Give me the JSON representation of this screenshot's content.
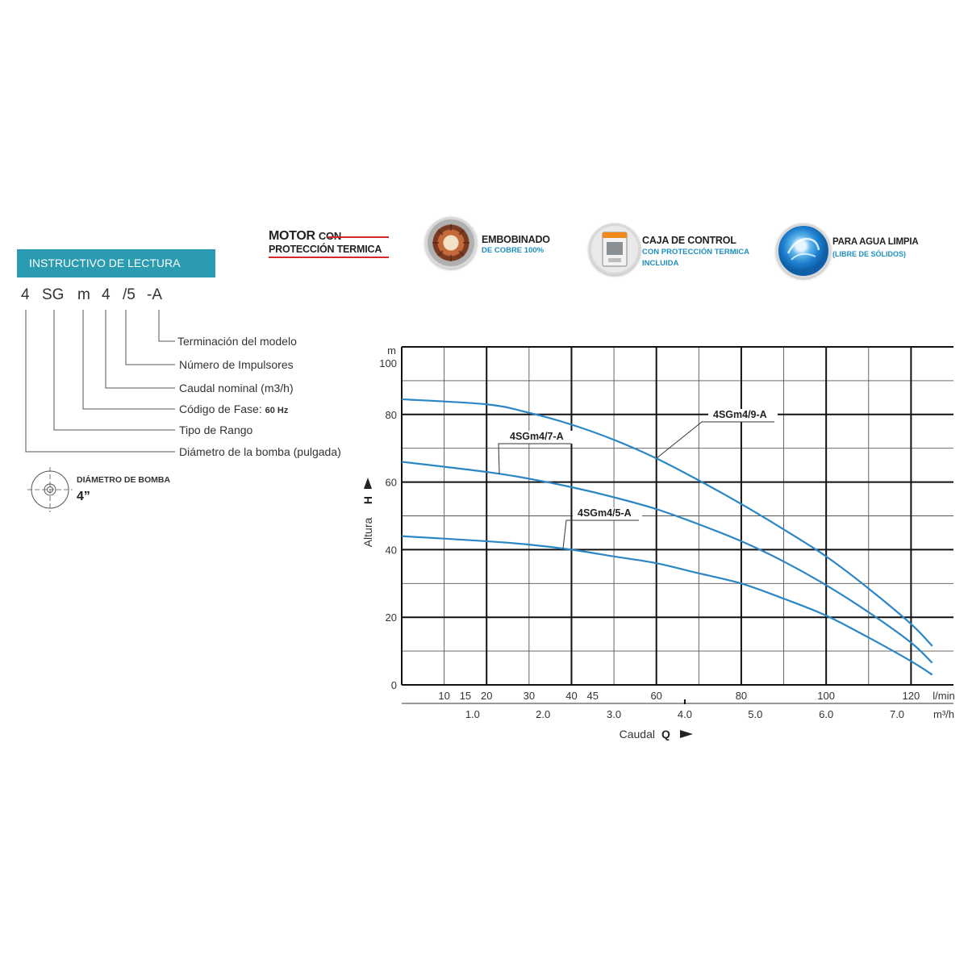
{
  "features": {
    "motor_line1_a": "MOTOR",
    "motor_line1_b": "CON",
    "motor_line2": "PROTECCIÓN TERMICA",
    "winding_title": "EMBOBINADO",
    "winding_sub": "DE COBRE 100%",
    "control_title": "CAJA DE CONTROL",
    "control_sub1": "CON PROTECCIÓN TERMICA",
    "control_sub2": "INCLUIDA",
    "water_title": "PARA AGUA LIMPIA",
    "water_sub": "(LIBRE DE SÓLIDOS)",
    "accent_color": "#1e8fbf",
    "red_color": "#d62828"
  },
  "instructions": {
    "header": "INSTRUCTIVO DE LECTURA",
    "header_color": "#2a9bb0",
    "code_parts": [
      "4",
      "SG",
      "m",
      "4",
      "/5",
      "-A"
    ],
    "descriptions": {
      "terminacion": "Terminación del modelo",
      "impulsores": "Número de Impulsores",
      "caudal": "Caudal nominal (m3/h)",
      "fase": "Código de Fase:",
      "fase_hz": "60 Hz",
      "rango": "Tipo de Rango",
      "diametro": "Diámetro de la bomba (pulgada)"
    },
    "diameter_title": "DIÁMETRO DE BOMBA",
    "diameter_value": "4”"
  },
  "chart_data": {
    "type": "line",
    "title": "",
    "ylabel": "Altura",
    "ylabel_symbol": "H",
    "y_unit": "m",
    "ylim": [
      0,
      100
    ],
    "yticks": [
      "0",
      "20",
      "40",
      "60",
      "80",
      "100"
    ],
    "xlabel": "Caudal",
    "xlabel_symbol": "Q",
    "xlim_lmin": [
      0,
      130
    ],
    "x_unit_lmin": "l/min",
    "x_unit_m3h": "m³/h",
    "xticks_lmin": [
      "10",
      "15",
      "20",
      "30",
      "40",
      "45",
      "60",
      "80",
      "100",
      "120"
    ],
    "xticks_lmin_values": [
      10,
      15,
      20,
      30,
      40,
      45,
      60,
      80,
      100,
      120
    ],
    "xticks_m3h": [
      "1.0",
      "2.0",
      "3.0",
      "4.0",
      "5.0",
      "6.0",
      "7.0"
    ],
    "xticks_m3h_lmin_positions": [
      16.7,
      33.3,
      50,
      66.7,
      83.3,
      100,
      116.7
    ],
    "grid": true,
    "line_color": "#2a86c4",
    "series": [
      {
        "name": "4SGm4/9-A",
        "x": [
          0,
          20,
          30,
          40,
          50,
          60,
          70,
          80,
          90,
          100,
          110,
          120,
          125
        ],
        "y": [
          84.5,
          83,
          80.5,
          77,
          72.5,
          67,
          60.5,
          53.5,
          46,
          38,
          28.5,
          18,
          11.5
        ]
      },
      {
        "name": "4SGm4/7-A",
        "x": [
          0,
          20,
          30,
          40,
          50,
          60,
          70,
          80,
          90,
          100,
          110,
          120,
          125
        ],
        "y": [
          66,
          63,
          61,
          58.5,
          55.5,
          52,
          47.5,
          42.5,
          36.5,
          29.5,
          21.5,
          12.5,
          6.5
        ]
      },
      {
        "name": "4SGm4/5-A",
        "x": [
          0,
          20,
          30,
          40,
          50,
          60,
          70,
          80,
          90,
          100,
          110,
          120,
          125
        ],
        "y": [
          44,
          42.5,
          41.5,
          40,
          38,
          36,
          33,
          30,
          25.5,
          20.5,
          14,
          7,
          3
        ]
      }
    ]
  }
}
